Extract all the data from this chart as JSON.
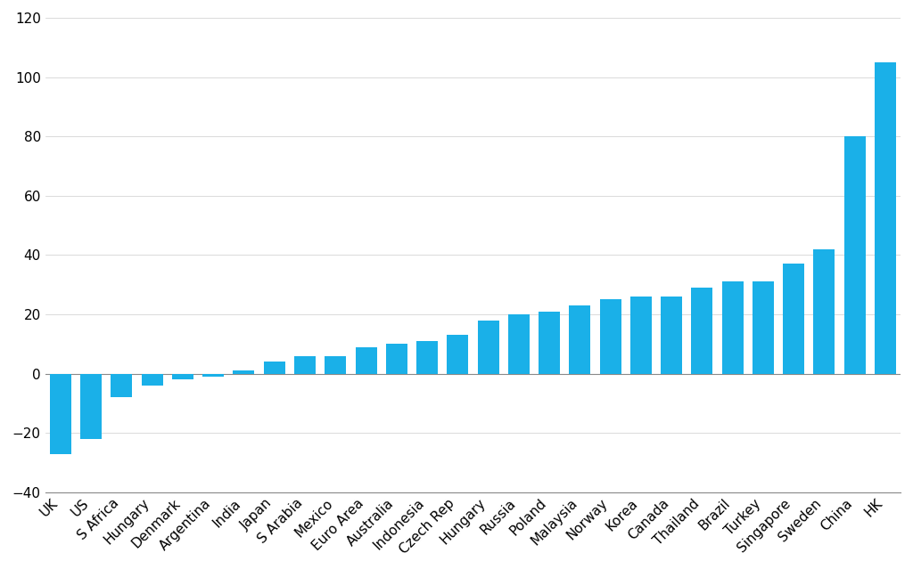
{
  "categories": [
    "UK",
    "US",
    "S Africa",
    "Hungary",
    "Denmark",
    "Argentina",
    "India",
    "Japan",
    "S Arabia",
    "Mexico",
    "Euro Area",
    "Australia",
    "Indonesia",
    "Czech Rep",
    "Hungary",
    "Russia",
    "Poland",
    "Malaysia",
    "Norway",
    "Korea",
    "Canada",
    "Thailand",
    "Brazil",
    "Turkey",
    "Singapore",
    "Sweden",
    "China",
    "HK"
  ],
  "values": [
    -27,
    -22,
    -8,
    -4,
    -2,
    -1,
    1,
    4,
    6,
    6,
    9,
    10,
    11,
    13,
    18,
    20,
    21,
    23,
    25,
    26,
    26,
    29,
    31,
    31,
    37,
    42,
    80,
    105
  ],
  "bar_color": "#1ab0e8",
  "ylim": [
    -40,
    120
  ],
  "yticks": [
    -40,
    -20,
    0,
    20,
    40,
    60,
    80,
    100,
    120
  ],
  "background_color": "#ffffff",
  "plot_bg_color": "#ffffff",
  "grid_color": "#cccccc",
  "tick_label_size": 11
}
